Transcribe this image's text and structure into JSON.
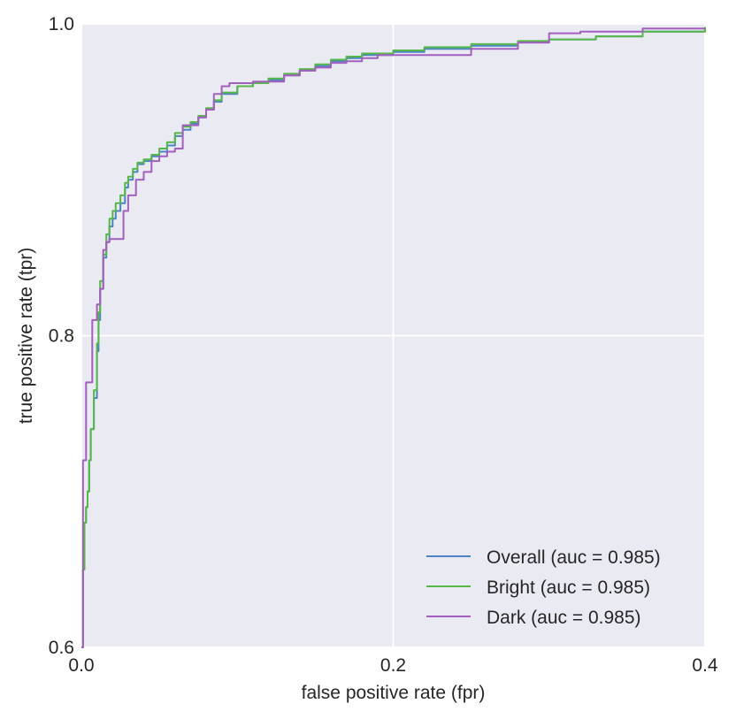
{
  "chart_data": {
    "type": "line",
    "title": "",
    "xlabel": "false positive rate (fpr)",
    "ylabel": "true positive rate (tpr)",
    "xlim": [
      0.0,
      0.4
    ],
    "ylim": [
      0.6,
      1.0
    ],
    "xticks": [
      0.0,
      0.2,
      0.4
    ],
    "xtick_labels": [
      "0.0",
      "0.2",
      "0.4"
    ],
    "yticks": [
      0.6,
      0.8,
      1.0
    ],
    "ytick_labels": [
      "0.6",
      "0.8",
      "1.0"
    ],
    "grid": true,
    "legend_position": "bottom-right",
    "background": "#eaeaf2",
    "series": [
      {
        "name": "Overall (auc = 0.985)",
        "color": "#4c84c4",
        "x": [
          0.0,
          0.001,
          0.002,
          0.003,
          0.004,
          0.005,
          0.006,
          0.008,
          0.01,
          0.011,
          0.012,
          0.014,
          0.016,
          0.018,
          0.02,
          0.022,
          0.025,
          0.028,
          0.03,
          0.033,
          0.036,
          0.04,
          0.045,
          0.05,
          0.055,
          0.06,
          0.065,
          0.07,
          0.075,
          0.08,
          0.085,
          0.09,
          0.1,
          0.11,
          0.12,
          0.13,
          0.14,
          0.15,
          0.16,
          0.17,
          0.18,
          0.2,
          0.22,
          0.25,
          0.28,
          0.3,
          0.33,
          0.36,
          0.4
        ],
        "y": [
          0.6,
          0.65,
          0.68,
          0.69,
          0.7,
          0.72,
          0.74,
          0.76,
          0.79,
          0.81,
          0.83,
          0.85,
          0.86,
          0.87,
          0.875,
          0.88,
          0.885,
          0.895,
          0.9,
          0.905,
          0.91,
          0.912,
          0.915,
          0.918,
          0.922,
          0.928,
          0.932,
          0.936,
          0.94,
          0.945,
          0.95,
          0.955,
          0.96,
          0.962,
          0.964,
          0.967,
          0.97,
          0.973,
          0.976,
          0.978,
          0.98,
          0.982,
          0.984,
          0.986,
          0.988,
          0.99,
          0.992,
          0.995,
          0.997
        ]
      },
      {
        "name": "Bright (auc = 0.985)",
        "color": "#55b748",
        "x": [
          0.0,
          0.001,
          0.002,
          0.003,
          0.004,
          0.005,
          0.006,
          0.008,
          0.01,
          0.011,
          0.012,
          0.014,
          0.016,
          0.018,
          0.02,
          0.022,
          0.025,
          0.028,
          0.03,
          0.033,
          0.036,
          0.04,
          0.045,
          0.05,
          0.055,
          0.06,
          0.065,
          0.07,
          0.075,
          0.08,
          0.085,
          0.09,
          0.1,
          0.11,
          0.12,
          0.13,
          0.14,
          0.15,
          0.16,
          0.17,
          0.18,
          0.2,
          0.22,
          0.25,
          0.28,
          0.3,
          0.33,
          0.36,
          0.4
        ],
        "y": [
          0.6,
          0.65,
          0.68,
          0.69,
          0.7,
          0.72,
          0.74,
          0.765,
          0.795,
          0.815,
          0.835,
          0.852,
          0.865,
          0.875,
          0.88,
          0.885,
          0.89,
          0.898,
          0.902,
          0.907,
          0.911,
          0.913,
          0.916,
          0.92,
          0.924,
          0.93,
          0.934,
          0.937,
          0.941,
          0.946,
          0.951,
          0.956,
          0.96,
          0.962,
          0.965,
          0.968,
          0.971,
          0.974,
          0.977,
          0.979,
          0.981,
          0.983,
          0.985,
          0.987,
          0.989,
          0.99,
          0.992,
          0.995,
          0.998
        ]
      },
      {
        "name": "Dark (auc = 0.985)",
        "color": "#a35fbf",
        "x": [
          0.0,
          0.001,
          0.002,
          0.003,
          0.005,
          0.007,
          0.01,
          0.012,
          0.014,
          0.016,
          0.018,
          0.02,
          0.022,
          0.027,
          0.03,
          0.035,
          0.04,
          0.045,
          0.05,
          0.055,
          0.06,
          0.065,
          0.075,
          0.08,
          0.085,
          0.09,
          0.095,
          0.1,
          0.11,
          0.12,
          0.13,
          0.14,
          0.15,
          0.16,
          0.17,
          0.18,
          0.19,
          0.2,
          0.22,
          0.25,
          0.28,
          0.3,
          0.32,
          0.34,
          0.36,
          0.4
        ],
        "y": [
          0.6,
          0.72,
          0.72,
          0.77,
          0.77,
          0.81,
          0.82,
          0.83,
          0.855,
          0.86,
          0.862,
          0.862,
          0.862,
          0.88,
          0.89,
          0.9,
          0.905,
          0.912,
          0.915,
          0.918,
          0.92,
          0.935,
          0.94,
          0.945,
          0.955,
          0.96,
          0.962,
          0.962,
          0.963,
          0.963,
          0.967,
          0.97,
          0.972,
          0.975,
          0.976,
          0.978,
          0.98,
          0.98,
          0.98,
          0.984,
          0.988,
          0.994,
          0.995,
          0.995,
          0.997,
          0.997
        ]
      }
    ]
  }
}
